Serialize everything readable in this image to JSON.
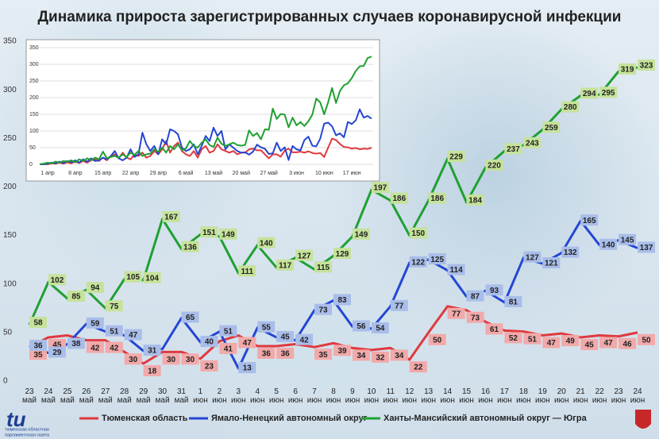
{
  "chart_data": [
    {
      "type": "line",
      "title": "Динамика прироста зарегистрированных случаев коронавирусной инфекции",
      "categories": [
        "23 май",
        "24 май",
        "25 май",
        "26 май",
        "27 май",
        "28 май",
        "29 май",
        "30 май",
        "31 май",
        "1 июн",
        "2 июн",
        "3 июн",
        "4 июн",
        "5 июн",
        "6 июн",
        "7 июн",
        "8 июн",
        "9 июн",
        "10 июн",
        "11 июн",
        "12 июн",
        "13 июн",
        "14 июн",
        "15 июн",
        "16 июн",
        "17 июн",
        "18 июн",
        "19 июн",
        "20 июн",
        "21 июн",
        "22 июн",
        "23 июн",
        "24 июн"
      ],
      "ylim": [
        0,
        350
      ],
      "yticks": [
        0,
        50,
        100,
        150,
        200,
        250,
        300,
        350
      ],
      "grid": false,
      "legend": "bottom",
      "series": [
        {
          "name": "Тюменская область",
          "color": "#e0393e",
          "label_color": "#f2a9a9",
          "values": [
            35,
            45,
            47,
            42,
            42,
            30,
            18,
            30,
            30,
            23,
            41,
            47,
            36,
            36,
            38,
            35,
            39,
            34,
            32,
            34,
            22,
            50,
            77,
            73,
            61,
            52,
            51,
            47,
            49,
            45,
            47,
            46,
            50
          ],
          "value_labels": [
            "35",
            "45",
            null,
            "42",
            "42",
            "30",
            "18",
            "30",
            "30",
            "23",
            "41",
            "47",
            "36",
            "36",
            null,
            "35",
            "39",
            "34",
            "32",
            "34",
            "22",
            "50",
            "77",
            "73",
            "61",
            "52",
            "51",
            "47",
            "49",
            "45",
            "47",
            "46",
            "50"
          ]
        },
        {
          "name": "Ямало-Ненецкий автономный округ",
          "color": "#2446d4",
          "label_color": "#a9bde9",
          "values": [
            36,
            29,
            38,
            59,
            51,
            47,
            31,
            33,
            65,
            40,
            51,
            13,
            55,
            45,
            42,
            73,
            83,
            56,
            54,
            77,
            122,
            125,
            114,
            87,
            93,
            81,
            127,
            121,
            132,
            165,
            140,
            145,
            137
          ],
          "value_labels": [
            "36",
            "29",
            "38",
            "59",
            "51",
            "47",
            "31",
            null,
            "65",
            "40",
            "51",
            "13",
            "55",
            "45",
            "42",
            "73",
            "83",
            "56",
            "54",
            "77",
            "122",
            "125",
            "114",
            "87",
            "93",
            "81",
            "127",
            "121",
            "132",
            "165",
            "140",
            "145",
            "137"
          ]
        },
        {
          "name": "Ханты-Мансийский автономный округ — Югра",
          "color": "#1fa032",
          "label_color": "#c6e29a",
          "values": [
            58,
            102,
            85,
            94,
            75,
            105,
            104,
            167,
            136,
            151,
            149,
            111,
            140,
            117,
            127,
            115,
            129,
            149,
            197,
            186,
            150,
            186,
            229,
            184,
            220,
            237,
            243,
            259,
            280,
            294,
            295,
            319,
            323
          ],
          "value_labels": [
            "58",
            "102",
            "85",
            "94",
            "75",
            "105",
            "104",
            "167",
            "136",
            "151",
            "149",
            "111",
            "140",
            "117",
            "127",
            "115",
            "129",
            "149",
            "197",
            "186",
            "150",
            "186",
            "229",
            "184",
            "220",
            "237",
            "243",
            "259",
            "280",
            "294",
            "295",
            "319",
            "323"
          ]
        }
      ]
    },
    {
      "type": "line",
      "categories": [
        "1 апр",
        null,
        null,
        null,
        null,
        null,
        null,
        "8 апр",
        null,
        null,
        null,
        null,
        null,
        null,
        "15 апр",
        null,
        null,
        null,
        null,
        null,
        null,
        "22 апр",
        null,
        null,
        null,
        null,
        null,
        null,
        "29 апр",
        null,
        null,
        null,
        null,
        null,
        null,
        "6 май",
        null,
        null,
        null,
        null,
        null,
        null,
        "13 май",
        null,
        null,
        null,
        null,
        null,
        null,
        "20 май",
        null,
        null,
        null,
        null,
        null,
        null,
        "27 май",
        null,
        null,
        null,
        null,
        null,
        null,
        "3 июн",
        null,
        null,
        null,
        null,
        null,
        null,
        "10 июн",
        null,
        null,
        null,
        null,
        null,
        null,
        "17 июн",
        null,
        null,
        null,
        null,
        null,
        null,
        null
      ],
      "ylim": [
        0,
        350
      ],
      "yticks": [
        0,
        50,
        100,
        150,
        200,
        250,
        300,
        350
      ],
      "grid": true,
      "series": [
        {
          "color": "#e0393e",
          "values": [
            0,
            1,
            0,
            3,
            2,
            5,
            2,
            6,
            3,
            8,
            4,
            10,
            5,
            12,
            15,
            10,
            20,
            12,
            25,
            30,
            18,
            35,
            20,
            15,
            30,
            25,
            35,
            20,
            25,
            40,
            30,
            45,
            70,
            35,
            55,
            65,
            40,
            30,
            25,
            40,
            20,
            45,
            55,
            35,
            40,
            60,
            45,
            40,
            35,
            40,
            30,
            35,
            35,
            45,
            47,
            42,
            42,
            30,
            18,
            30,
            30,
            23,
            41,
            47,
            36,
            36,
            38,
            35,
            39,
            34,
            32,
            34,
            22,
            50,
            77,
            73,
            61,
            52,
            51,
            47,
            49,
            45,
            47,
            46,
            50
          ]
        },
        {
          "color": "#2446d4",
          "values": [
            0,
            0,
            2,
            5,
            3,
            8,
            4,
            10,
            6,
            12,
            5,
            15,
            8,
            18,
            10,
            12,
            20,
            15,
            25,
            40,
            18,
            12,
            20,
            45,
            22,
            30,
            95,
            60,
            40,
            55,
            30,
            75,
            60,
            105,
            100,
            90,
            50,
            40,
            45,
            60,
            30,
            55,
            85,
            70,
            110,
            85,
            100,
            45,
            60,
            50,
            40,
            35,
            36,
            29,
            38,
            59,
            51,
            47,
            31,
            33,
            65,
            40,
            51,
            13,
            55,
            45,
            42,
            73,
            83,
            56,
            54,
            77,
            122,
            125,
            114,
            87,
            93,
            81,
            127,
            121,
            132,
            165,
            140,
            145,
            137
          ]
        },
        {
          "color": "#1fa032",
          "values": [
            0,
            2,
            5,
            3,
            8,
            5,
            10,
            8,
            12,
            6,
            15,
            10,
            18,
            12,
            20,
            15,
            38,
            18,
            22,
            25,
            20,
            30,
            22,
            35,
            28,
            40,
            25,
            30,
            32,
            45,
            38,
            50,
            35,
            55,
            45,
            60,
            42,
            48,
            70,
            55,
            50,
            65,
            75,
            58,
            52,
            80,
            62,
            55,
            60,
            65,
            58,
            56,
            58,
            102,
            85,
            94,
            75,
            105,
            104,
            167,
            136,
            151,
            149,
            111,
            140,
            117,
            127,
            115,
            129,
            149,
            197,
            186,
            150,
            186,
            229,
            184,
            220,
            237,
            243,
            259,
            280,
            294,
            295,
            319,
            323
          ]
        }
      ]
    }
  ],
  "logo": {
    "mark": "tu",
    "line1": "тюменская областная",
    "line2": "парламентская газета"
  }
}
